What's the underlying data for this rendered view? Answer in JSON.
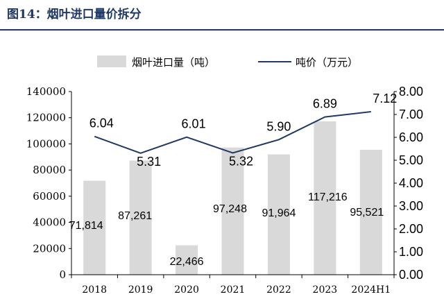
{
  "figure_title": "图14：烟叶进口量价拆分",
  "chart_data": {
    "type": "bar",
    "categories": [
      "2018",
      "2019",
      "2020",
      "2021",
      "2022",
      "2023",
      "2024H1"
    ],
    "series": [
      {
        "name": "烟叶进口量（吨）",
        "type": "bar",
        "axis": "left",
        "values": [
          71814,
          87261,
          22466,
          97248,
          91964,
          117216,
          95521
        ],
        "labels": [
          "71,814",
          "87,261",
          "22,466",
          "97,248",
          "91,964",
          "117,216",
          "95,521"
        ],
        "color": "#d9d9d9"
      },
      {
        "name": "吨价（万元）",
        "type": "line",
        "axis": "right",
        "values": [
          6.04,
          5.31,
          6.01,
          5.32,
          5.9,
          6.89,
          7.12
        ],
        "labels": [
          "6.04",
          "5.31",
          "6.01",
          "5.32",
          "5.90",
          "6.89",
          "7.12"
        ],
        "color": "#1f3864"
      }
    ],
    "y_left": {
      "range": [
        0,
        140000
      ],
      "ticks": [
        "0",
        "20000",
        "40000",
        "60000",
        "80000",
        "100000",
        "120000",
        "140000"
      ]
    },
    "y_right": {
      "range": [
        0,
        8
      ],
      "ticks": [
        "0.00",
        "1.00",
        "2.00",
        "3.00",
        "4.00",
        "5.00",
        "6.00",
        "7.00",
        "8.00"
      ]
    },
    "grid": false,
    "legend_position": "top"
  }
}
